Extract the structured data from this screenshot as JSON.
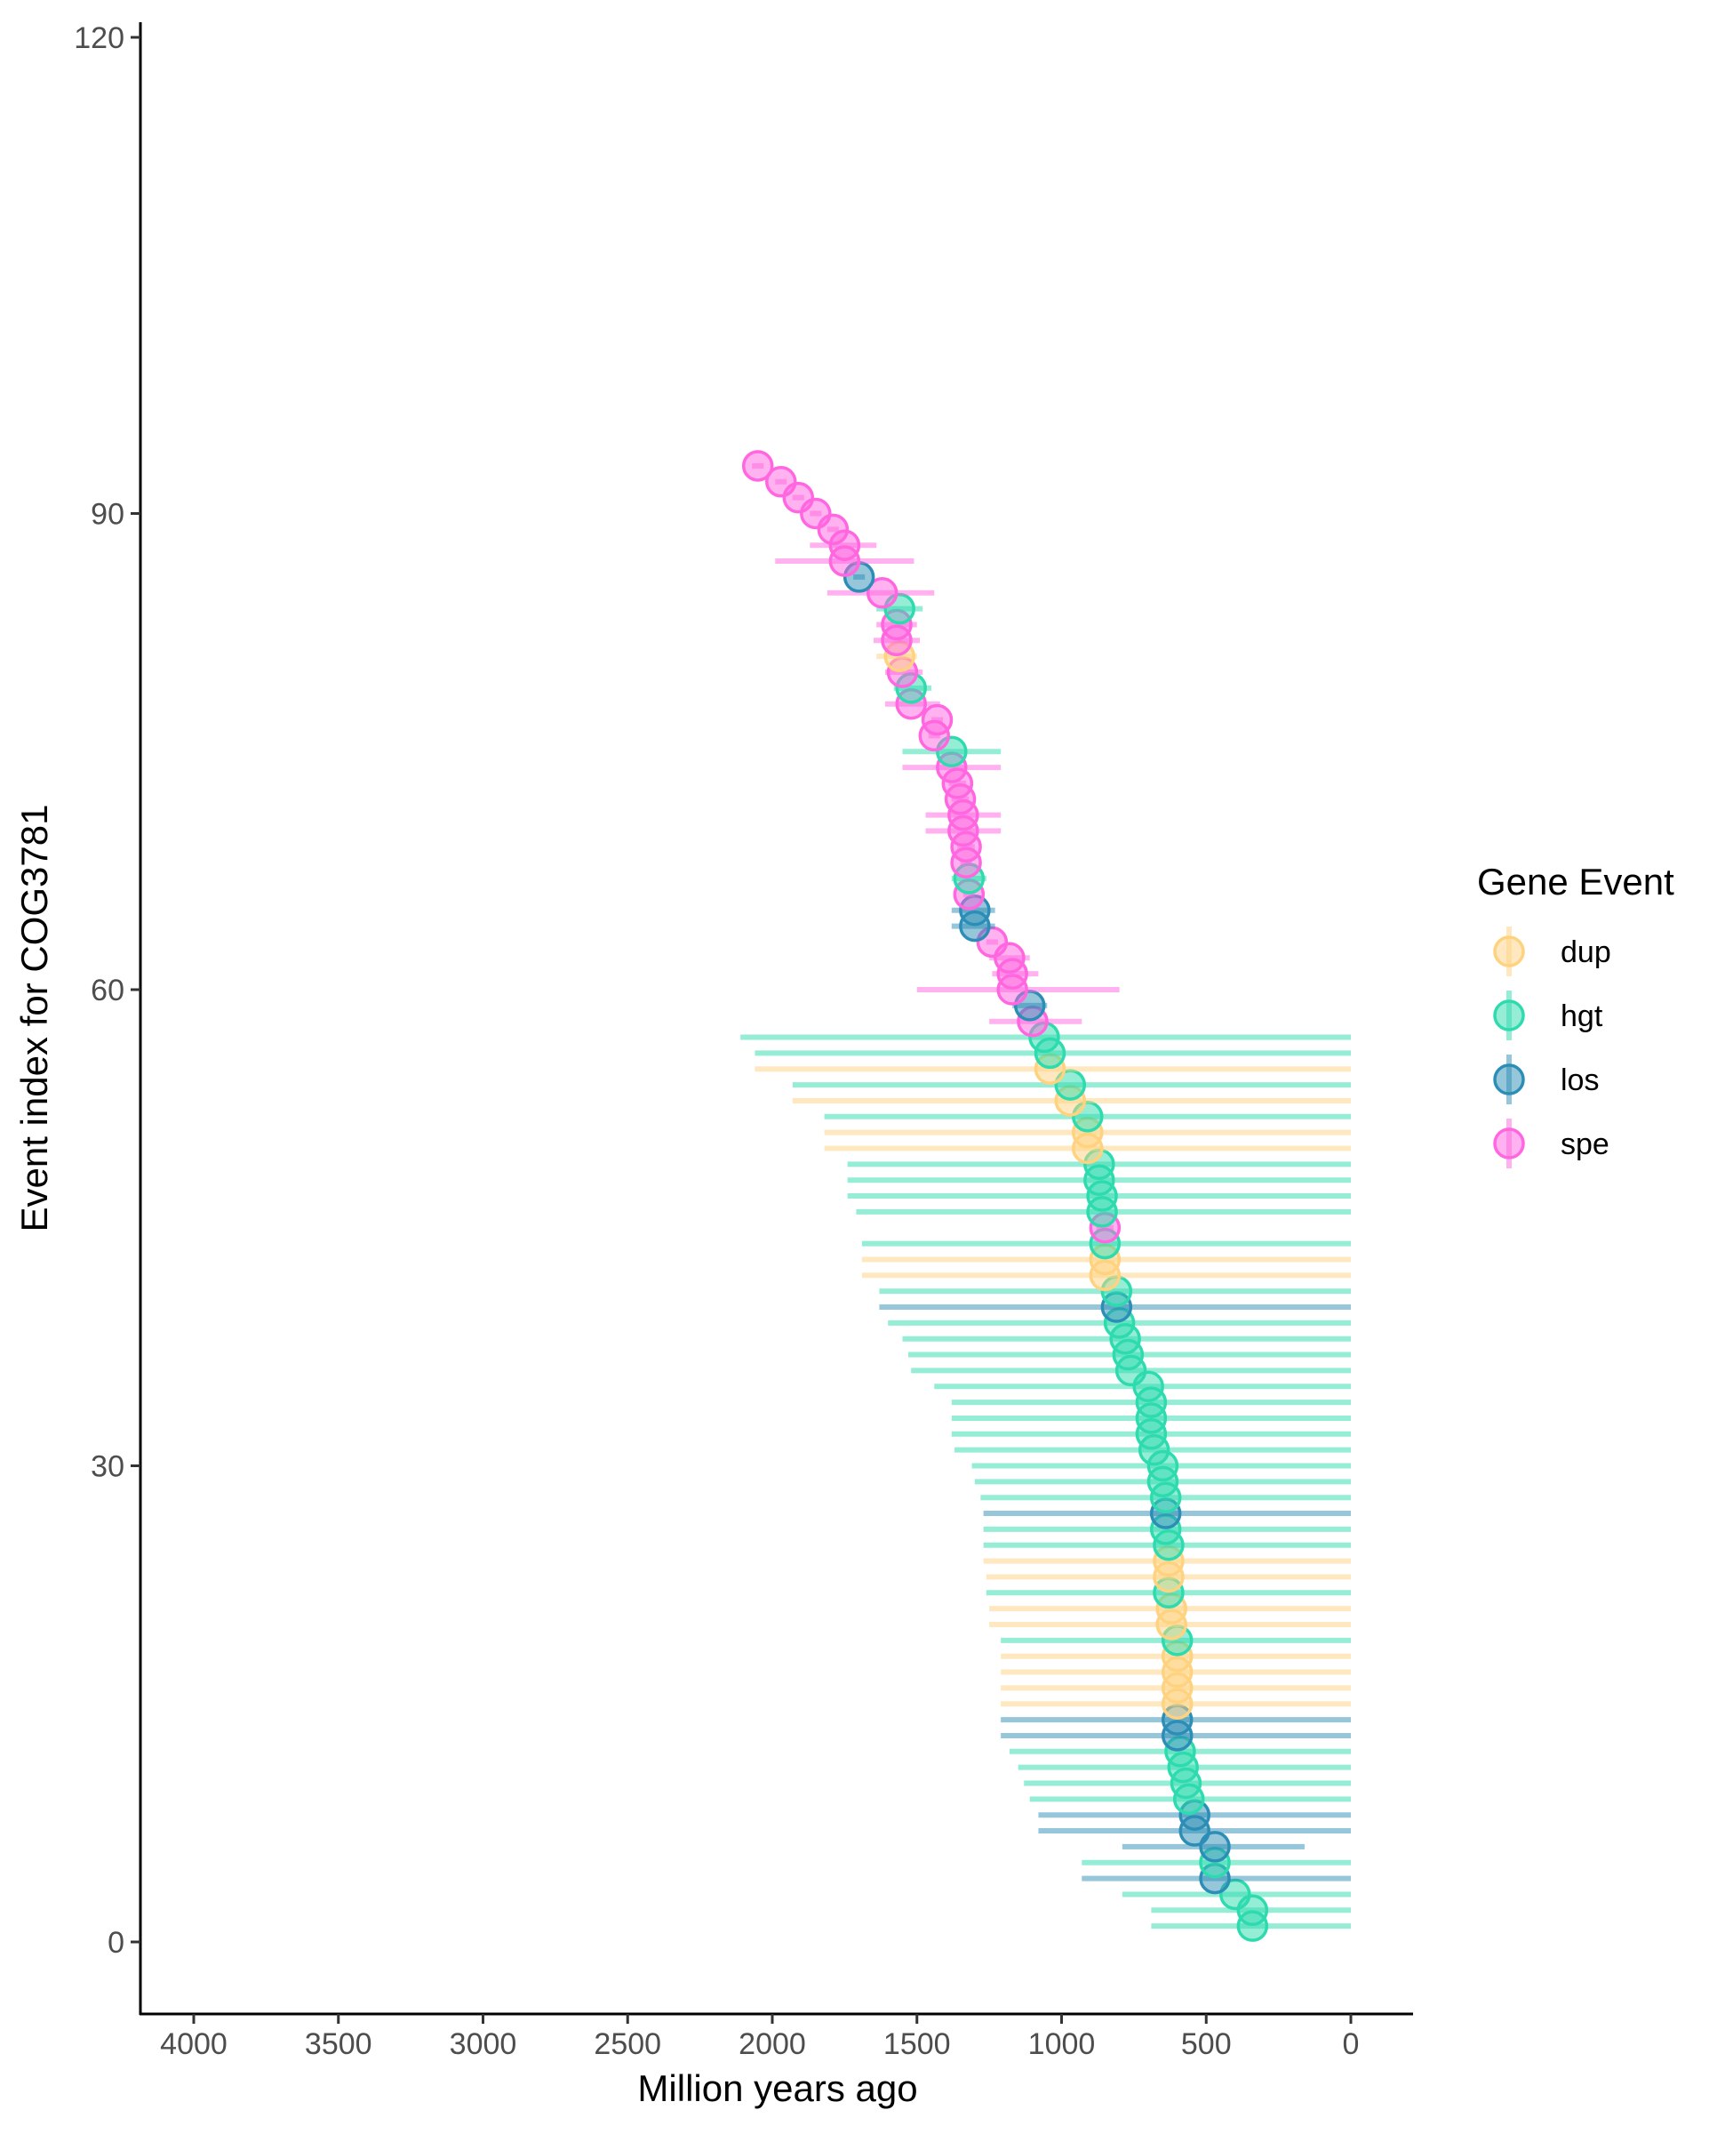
{
  "chart_data": {
    "type": "scatter",
    "title": "",
    "xlabel": "Million years ago",
    "ylabel": "Event index for COG3781",
    "xlim": [
      4200,
      -200
    ],
    "ylim": [
      -4.5,
      120.5
    ],
    "x_ticks": [
      4000,
      3500,
      3000,
      2500,
      2000,
      1500,
      1000,
      500,
      0
    ],
    "x_tick_labels": [
      "4000",
      "3500",
      "3000",
      "2500",
      "2000",
      "1500",
      "1000",
      "500",
      "0"
    ],
    "y_ticks": [
      0,
      30,
      60,
      90,
      120
    ],
    "y_tick_labels": [
      "0",
      "30",
      "60",
      "90",
      "120"
    ],
    "grid": false,
    "legend": {
      "title": "Gene Event",
      "position": "right",
      "entries": [
        {
          "key": "dup",
          "label": "dup",
          "color": "#FFD27F"
        },
        {
          "key": "hgt",
          "label": "hgt",
          "color": "#2EDBAE"
        },
        {
          "key": "los",
          "label": "los",
          "color": "#2C8EB6"
        },
        {
          "key": "spe",
          "label": "spe",
          "color": "#FF66E0"
        }
      ]
    },
    "points": [
      {
        "i": 1,
        "t": "hgt",
        "x": 340,
        "lo": 0,
        "hi": 690
      },
      {
        "i": 2,
        "t": "hgt",
        "x": 340,
        "lo": 0,
        "hi": 690
      },
      {
        "i": 3,
        "t": "hgt",
        "x": 400,
        "lo": 0,
        "hi": 790
      },
      {
        "i": 4,
        "t": "los",
        "x": 470,
        "lo": 0,
        "hi": 930
      },
      {
        "i": 5,
        "t": "hgt",
        "x": 470,
        "lo": 0,
        "hi": 930
      },
      {
        "i": 6,
        "t": "los",
        "x": 470,
        "lo": 160,
        "hi": 790
      },
      {
        "i": 7,
        "t": "los",
        "x": 540,
        "lo": 0,
        "hi": 1080
      },
      {
        "i": 8,
        "t": "los",
        "x": 540,
        "lo": 0,
        "hi": 1080
      },
      {
        "i": 9,
        "t": "hgt",
        "x": 560,
        "lo": 0,
        "hi": 1110
      },
      {
        "i": 10,
        "t": "hgt",
        "x": 570,
        "lo": 0,
        "hi": 1130
      },
      {
        "i": 11,
        "t": "hgt",
        "x": 580,
        "lo": 0,
        "hi": 1150
      },
      {
        "i": 12,
        "t": "hgt",
        "x": 590,
        "lo": 0,
        "hi": 1180
      },
      {
        "i": 13,
        "t": "los",
        "x": 600,
        "lo": 0,
        "hi": 1210
      },
      {
        "i": 14,
        "t": "los",
        "x": 600,
        "lo": 0,
        "hi": 1210
      },
      {
        "i": 15,
        "t": "dup",
        "x": 600,
        "lo": 0,
        "hi": 1210
      },
      {
        "i": 16,
        "t": "dup",
        "x": 600,
        "lo": 0,
        "hi": 1210
      },
      {
        "i": 17,
        "t": "dup",
        "x": 600,
        "lo": 0,
        "hi": 1210
      },
      {
        "i": 18,
        "t": "dup",
        "x": 600,
        "lo": 0,
        "hi": 1210
      },
      {
        "i": 19,
        "t": "hgt",
        "x": 600,
        "lo": 0,
        "hi": 1210
      },
      {
        "i": 20,
        "t": "dup",
        "x": 620,
        "lo": 0,
        "hi": 1250
      },
      {
        "i": 21,
        "t": "dup",
        "x": 620,
        "lo": 0,
        "hi": 1250
      },
      {
        "i": 22,
        "t": "hgt",
        "x": 630,
        "lo": 0,
        "hi": 1260
      },
      {
        "i": 23,
        "t": "dup",
        "x": 630,
        "lo": 0,
        "hi": 1260
      },
      {
        "i": 24,
        "t": "dup",
        "x": 630,
        "lo": 0,
        "hi": 1270
      },
      {
        "i": 25,
        "t": "hgt",
        "x": 630,
        "lo": 0,
        "hi": 1270
      },
      {
        "i": 26,
        "t": "hgt",
        "x": 640,
        "lo": 0,
        "hi": 1270
      },
      {
        "i": 27,
        "t": "los",
        "x": 640,
        "lo": 0,
        "hi": 1270
      },
      {
        "i": 28,
        "t": "hgt",
        "x": 640,
        "lo": 0,
        "hi": 1280
      },
      {
        "i": 29,
        "t": "hgt",
        "x": 650,
        "lo": 0,
        "hi": 1300
      },
      {
        "i": 30,
        "t": "hgt",
        "x": 650,
        "lo": 0,
        "hi": 1310
      },
      {
        "i": 31,
        "t": "hgt",
        "x": 680,
        "lo": 0,
        "hi": 1370
      },
      {
        "i": 32,
        "t": "hgt",
        "x": 690,
        "lo": 0,
        "hi": 1380
      },
      {
        "i": 33,
        "t": "hgt",
        "x": 690,
        "lo": 0,
        "hi": 1380
      },
      {
        "i": 34,
        "t": "hgt",
        "x": 690,
        "lo": 0,
        "hi": 1380
      },
      {
        "i": 35,
        "t": "hgt",
        "x": 700,
        "lo": 0,
        "hi": 1440
      },
      {
        "i": 36,
        "t": "hgt",
        "x": 760,
        "lo": 0,
        "hi": 1520
      },
      {
        "i": 37,
        "t": "hgt",
        "x": 770,
        "lo": 0,
        "hi": 1530
      },
      {
        "i": 38,
        "t": "hgt",
        "x": 780,
        "lo": 0,
        "hi": 1550
      },
      {
        "i": 39,
        "t": "hgt",
        "x": 800,
        "lo": 0,
        "hi": 1600
      },
      {
        "i": 40,
        "t": "los",
        "x": 810,
        "lo": 0,
        "hi": 1630
      },
      {
        "i": 41,
        "t": "hgt",
        "x": 810,
        "lo": 0,
        "hi": 1630
      },
      {
        "i": 42,
        "t": "dup",
        "x": 850,
        "lo": 0,
        "hi": 1690
      },
      {
        "i": 43,
        "t": "dup",
        "x": 850,
        "lo": 0,
        "hi": 1690
      },
      {
        "i": 44,
        "t": "hgt",
        "x": 850,
        "lo": 0,
        "hi": 1690
      },
      {
        "i": 45,
        "t": "spe",
        "x": 850,
        "lo": 820,
        "hi": 880
      },
      {
        "i": 46,
        "t": "hgt",
        "x": 860,
        "lo": 0,
        "hi": 1710
      },
      {
        "i": 47,
        "t": "hgt",
        "x": 860,
        "lo": 0,
        "hi": 1740
      },
      {
        "i": 48,
        "t": "hgt",
        "x": 870,
        "lo": 0,
        "hi": 1740
      },
      {
        "i": 49,
        "t": "hgt",
        "x": 870,
        "lo": 0,
        "hi": 1740
      },
      {
        "i": 50,
        "t": "dup",
        "x": 910,
        "lo": 0,
        "hi": 1820
      },
      {
        "i": 51,
        "t": "dup",
        "x": 910,
        "lo": 0,
        "hi": 1820
      },
      {
        "i": 52,
        "t": "hgt",
        "x": 910,
        "lo": 0,
        "hi": 1820
      },
      {
        "i": 53,
        "t": "dup",
        "x": 970,
        "lo": 0,
        "hi": 1930
      },
      {
        "i": 54,
        "t": "hgt",
        "x": 970,
        "lo": 0,
        "hi": 1930
      },
      {
        "i": 55,
        "t": "dup",
        "x": 1040,
        "lo": 0,
        "hi": 2060
      },
      {
        "i": 56,
        "t": "hgt",
        "x": 1040,
        "lo": 0,
        "hi": 2060
      },
      {
        "i": 57,
        "t": "hgt",
        "x": 1060,
        "lo": 0,
        "hi": 2110
      },
      {
        "i": 58,
        "t": "spe",
        "x": 1100,
        "lo": 930,
        "hi": 1250
      },
      {
        "i": 59,
        "t": "los",
        "x": 1110,
        "lo": 1050,
        "hi": 1170
      },
      {
        "i": 60,
        "t": "spe",
        "x": 1170,
        "lo": 800,
        "hi": 1500
      },
      {
        "i": 61,
        "t": "spe",
        "x": 1170,
        "lo": 1080,
        "hi": 1240
      },
      {
        "i": 62,
        "t": "spe",
        "x": 1180,
        "lo": 1110,
        "hi": 1250
      },
      {
        "i": 63,
        "t": "spe",
        "x": 1240,
        "lo": 1220,
        "hi": 1260
      },
      {
        "i": 64,
        "t": "los",
        "x": 1300,
        "lo": 1230,
        "hi": 1380
      },
      {
        "i": 65,
        "t": "los",
        "x": 1300,
        "lo": 1230,
        "hi": 1380
      },
      {
        "i": 66,
        "t": "spe",
        "x": 1320,
        "lo": 1300,
        "hi": 1340
      },
      {
        "i": 67,
        "t": "hgt",
        "x": 1320,
        "lo": 1260,
        "hi": 1380
      },
      {
        "i": 68,
        "t": "spe",
        "x": 1330,
        "lo": 1310,
        "hi": 1350
      },
      {
        "i": 69,
        "t": "spe",
        "x": 1330,
        "lo": 1300,
        "hi": 1360
      },
      {
        "i": 70,
        "t": "spe",
        "x": 1340,
        "lo": 1210,
        "hi": 1470
      },
      {
        "i": 71,
        "t": "spe",
        "x": 1340,
        "lo": 1210,
        "hi": 1470
      },
      {
        "i": 72,
        "t": "spe",
        "x": 1350,
        "lo": 1320,
        "hi": 1380
      },
      {
        "i": 73,
        "t": "spe",
        "x": 1360,
        "lo": 1330,
        "hi": 1390
      },
      {
        "i": 74,
        "t": "spe",
        "x": 1380,
        "lo": 1210,
        "hi": 1550
      },
      {
        "i": 75,
        "t": "hgt",
        "x": 1380,
        "lo": 1210,
        "hi": 1550
      },
      {
        "i": 76,
        "t": "spe",
        "x": 1440,
        "lo": 1420,
        "hi": 1460
      },
      {
        "i": 77,
        "t": "spe",
        "x": 1430,
        "lo": 1410,
        "hi": 1450
      },
      {
        "i": 78,
        "t": "spe",
        "x": 1520,
        "lo": 1420,
        "hi": 1610
      },
      {
        "i": 79,
        "t": "hgt",
        "x": 1520,
        "lo": 1450,
        "hi": 1580
      },
      {
        "i": 80,
        "t": "spe",
        "x": 1550,
        "lo": 1480,
        "hi": 1610
      },
      {
        "i": 81,
        "t": "dup",
        "x": 1560,
        "lo": 1500,
        "hi": 1640
      },
      {
        "i": 82,
        "t": "spe",
        "x": 1570,
        "lo": 1490,
        "hi": 1650
      },
      {
        "i": 83,
        "t": "spe",
        "x": 1570,
        "lo": 1500,
        "hi": 1640
      },
      {
        "i": 84,
        "t": "hgt",
        "x": 1560,
        "lo": 1480,
        "hi": 1640
      },
      {
        "i": 85,
        "t": "spe",
        "x": 1620,
        "lo": 1440,
        "hi": 1810
      },
      {
        "i": 86,
        "t": "los",
        "x": 1700,
        "lo": 1680,
        "hi": 1720
      },
      {
        "i": 87,
        "t": "spe",
        "x": 1750,
        "lo": 1510,
        "hi": 1990
      },
      {
        "i": 88,
        "t": "spe",
        "x": 1750,
        "lo": 1640,
        "hi": 1870
      },
      {
        "i": 89,
        "t": "spe",
        "x": 1790,
        "lo": 1770,
        "hi": 1810
      },
      {
        "i": 90,
        "t": "spe",
        "x": 1850,
        "lo": 1830,
        "hi": 1870
      },
      {
        "i": 91,
        "t": "spe",
        "x": 1910,
        "lo": 1890,
        "hi": 1930
      },
      {
        "i": 92,
        "t": "spe",
        "x": 1970,
        "lo": 1950,
        "hi": 1990
      },
      {
        "i": 93,
        "t": "spe",
        "x": 2050,
        "lo": 2030,
        "hi": 2070
      }
    ]
  }
}
